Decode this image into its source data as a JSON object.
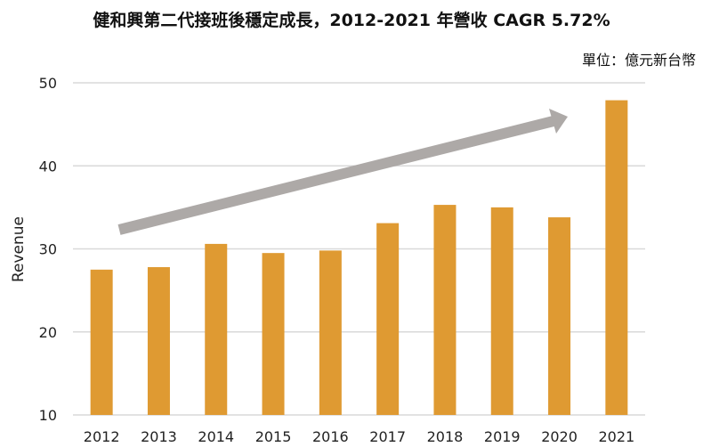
{
  "chart_data": {
    "type": "bar",
    "title": "健和興第二代接班後穩定成長，2012-2021 年營收 CAGR 5.72%",
    "unit_label": "單位：億元新台幣",
    "xlabel": "",
    "ylabel": "Revenue",
    "categories": [
      "2012",
      "2013",
      "2014",
      "2015",
      "2016",
      "2017",
      "2018",
      "2019",
      "2020",
      "2021"
    ],
    "values": [
      27.5,
      27.8,
      30.6,
      29.5,
      29.8,
      33.1,
      35.3,
      35.0,
      33.8,
      47.9
    ],
    "ylim": [
      10,
      50
    ],
    "yticks": [
      10,
      20,
      30,
      40,
      50
    ],
    "grid": true,
    "colors": {
      "bar": "#DF9A32",
      "arrow": "#ADA9A7",
      "grid": "#D9D9D9"
    }
  }
}
